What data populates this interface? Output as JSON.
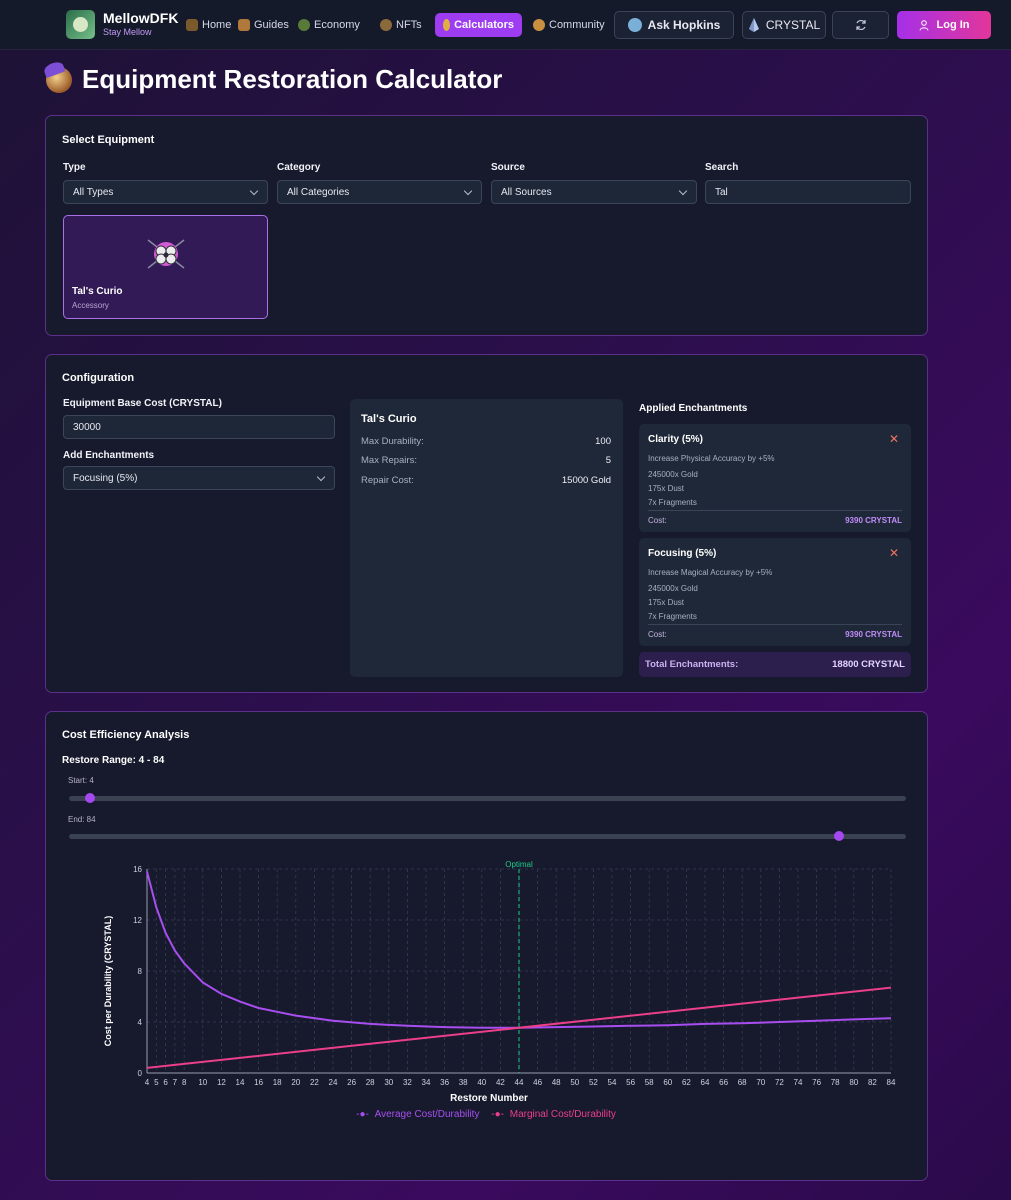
{
  "nav": {
    "brand_name": "MellowDFK",
    "brand_tag": "Stay Mellow",
    "items": [
      {
        "label": "Home"
      },
      {
        "label": "Guides"
      },
      {
        "label": "Economy"
      },
      {
        "label": "NFTs"
      },
      {
        "label": "Calculators"
      },
      {
        "label": "Community"
      }
    ],
    "ask_label": "Ask Hopkins",
    "crystal_label": "CRYSTAL",
    "login_label": "Log In"
  },
  "page": {
    "title": "Equipment Restoration Calculator"
  },
  "select_equipment": {
    "title": "Select Equipment",
    "type_label": "Type",
    "type_value": "All Types",
    "category_label": "Category",
    "category_value": "All Categories",
    "source_label": "Source",
    "source_value": "All Sources",
    "search_label": "Search",
    "search_value": "Tal",
    "result": {
      "name": "Tal's Curio",
      "type": "Accessory"
    }
  },
  "configuration": {
    "title": "Configuration",
    "base_cost_label": "Equipment Base Cost (CRYSTAL)",
    "base_cost_value": "30000",
    "add_ench_label": "Add Enchantments",
    "add_ench_value": "Focusing (5%)",
    "info": {
      "title": "Tal's Curio",
      "rows": [
        {
          "k": "Max Durability:",
          "v": "100"
        },
        {
          "k": "Max Repairs:",
          "v": "5"
        },
        {
          "k": "Repair Cost:",
          "v": "15000 Gold"
        }
      ]
    },
    "applied_title": "Applied Enchantments",
    "enchantments": [
      {
        "name": "Clarity (5%)",
        "desc": "Increase Physical Accuracy by +5%",
        "gold": "245000x Gold",
        "dust": "175x Dust",
        "fragments": "7x Fragments",
        "cost_label": "Cost:",
        "cost": "9390 CRYSTAL"
      },
      {
        "name": "Focusing (5%)",
        "desc": "Increase Magical Accuracy by +5%",
        "gold": "245000x Gold",
        "dust": "175x Dust",
        "fragments": "7x Fragments",
        "cost_label": "Cost:",
        "cost": "9390 CRYSTAL"
      }
    ],
    "total_label": "Total Enchantments:",
    "total_value": "18800 CRYSTAL"
  },
  "analysis": {
    "title": "Cost Efficiency Analysis",
    "range_label": "Restore Range: 4 - 84",
    "start_label": "Start: 4",
    "end_label": "End: 84",
    "start_value": 4,
    "end_value": 84,
    "slider_min": 1,
    "slider_max": 200
  },
  "colors": {
    "avg": "#a84ef0",
    "marginal": "#ec3f8a",
    "optimal": "#1fc98a",
    "accent": "#9d3cf0"
  },
  "chart_data": {
    "type": "line",
    "xlabel": "Restore Number",
    "ylabel": "Cost per Durability (CRYSTAL)",
    "xlim": [
      4,
      84
    ],
    "ylim": [
      0,
      16
    ],
    "yticks": [
      0,
      4,
      8,
      12,
      16
    ],
    "xticks": [
      4,
      5,
      6,
      7,
      8,
      10,
      12,
      14,
      16,
      18,
      20,
      22,
      24,
      26,
      28,
      30,
      32,
      34,
      36,
      38,
      40,
      42,
      44,
      46,
      48,
      50,
      52,
      54,
      56,
      58,
      60,
      62,
      64,
      66,
      68,
      70,
      72,
      74,
      76,
      78,
      80,
      82,
      84
    ],
    "optimal_x": 44,
    "optimal_label": "Optimal",
    "series": [
      {
        "name": "Average Cost/Durability",
        "x": [
          4,
          5,
          6,
          7,
          8,
          10,
          12,
          14,
          16,
          18,
          20,
          24,
          28,
          32,
          36,
          40,
          44,
          48,
          52,
          56,
          60,
          64,
          68,
          72,
          76,
          80,
          84
        ],
        "values": [
          15.8,
          13.0,
          11.0,
          9.6,
          8.6,
          7.1,
          6.2,
          5.6,
          5.1,
          4.8,
          4.5,
          4.1,
          3.85,
          3.7,
          3.6,
          3.55,
          3.55,
          3.6,
          3.65,
          3.7,
          3.75,
          3.85,
          3.9,
          4.0,
          4.1,
          4.2,
          4.3
        ]
      },
      {
        "name": "Marginal Cost/Durability",
        "x": [
          4,
          84
        ],
        "values": [
          0.4,
          6.7
        ]
      }
    ]
  }
}
